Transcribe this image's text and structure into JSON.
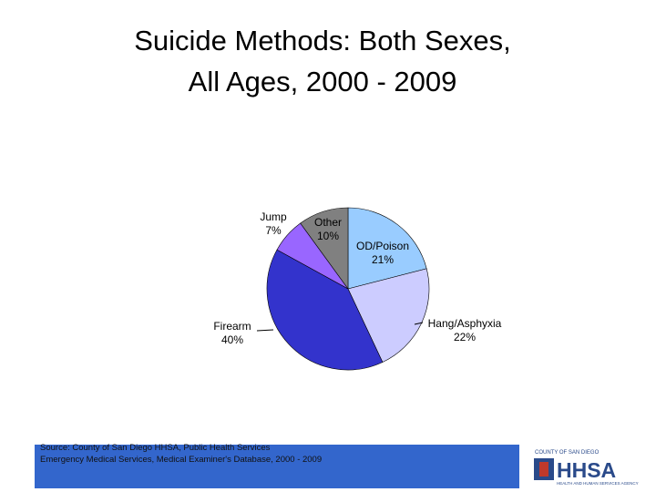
{
  "chart_data": {
    "type": "pie",
    "title": [
      "Suicide Methods: Both Sexes,",
      "All Ages, 2000 - 2009"
    ],
    "categories": [
      "OD/Poison",
      "Hang/Asphyxia",
      "Firearm",
      "Jump",
      "Other"
    ],
    "values": [
      21,
      22,
      40,
      7,
      10
    ],
    "value_labels": [
      "21%",
      "22%",
      "40%",
      "7%",
      "10%"
    ],
    "colors": [
      "#99ccff",
      "#ccccff",
      "#3333cc",
      "#9966ff",
      "#808080"
    ]
  },
  "footer": {
    "source": [
      "Source: County of San Diego HHSA, Public Health Services",
      "Emergency Medical Services, Medical Examiner's Database, 2000 - 2009"
    ],
    "logo": {
      "county": "COUNTY OF SAN DIEGO",
      "name": "HHSA",
      "agency": "HEALTH AND HUMAN SERVICES AGENCY"
    }
  }
}
